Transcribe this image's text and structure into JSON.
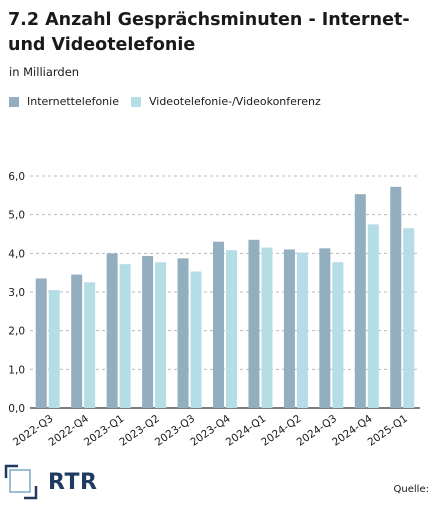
{
  "title": "7.2 Anzahl Gesprächsminuten - Internet- und Videotelefonie",
  "subtitle": "in Milliarden",
  "legend": {
    "series1": "Internettelefonie",
    "series2": "Videotelefonie-/Videokonferenz"
  },
  "colors": {
    "series1": "#93aebe",
    "series2": "#b5dde6",
    "grid": "#b8b8b8",
    "axis": "#333333",
    "logo": "#1f3a5f"
  },
  "logo_text": "RTR",
  "source_label": "Quelle:",
  "chart_data": {
    "type": "bar",
    "title": "7.2 Anzahl Gesprächsminuten - Internet- und Videotelefonie",
    "subtitle": "in Milliarden",
    "categories": [
      "2022-Q3",
      "2022-Q4",
      "2023-Q1",
      "2023-Q2",
      "2023-Q3",
      "2023-Q4",
      "2024-Q1",
      "2024-Q2",
      "2024-Q3",
      "2024-Q4",
      "2025-Q1"
    ],
    "series": [
      {
        "name": "Internettelefonie",
        "values": [
          3.35,
          3.45,
          4.0,
          3.93,
          3.87,
          4.3,
          4.35,
          4.1,
          4.13,
          5.53,
          5.72
        ]
      },
      {
        "name": "Videotelefonie-/Videokonferenz",
        "values": [
          3.05,
          3.25,
          3.72,
          3.77,
          3.53,
          4.08,
          4.15,
          4.02,
          3.77,
          4.75,
          4.65
        ]
      }
    ],
    "ylim": [
      0,
      6
    ],
    "yticks": [
      "0,0",
      "1,0",
      "2,0",
      "3,0",
      "4,0",
      "5,0",
      "6,0"
    ],
    "grid": true,
    "legend_position": "top-left"
  }
}
